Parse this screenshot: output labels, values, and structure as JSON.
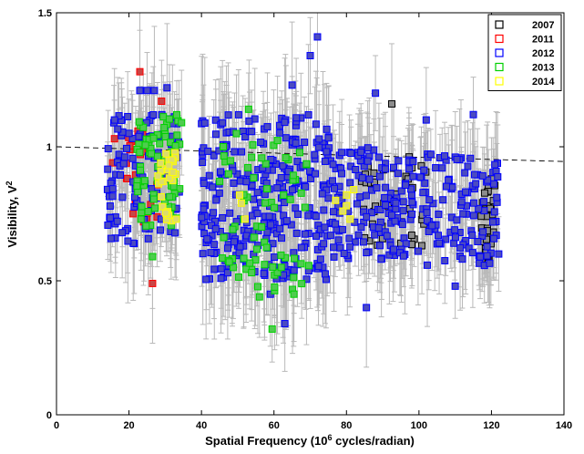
{
  "chart_data": {
    "type": "scatter",
    "xlabel_main": "Spatial Frequency (10",
    "xlabel_sup": "6",
    "xlabel_tail": " cycles/radian)",
    "ylabel_main": "Visibility, V",
    "ylabel_sup": "2",
    "xlim": [
      0,
      140
    ],
    "ylim": [
      0,
      1.5
    ],
    "xticks": [
      0,
      20,
      40,
      60,
      80,
      100,
      120,
      140
    ],
    "yticks": [
      0,
      0.5,
      1,
      1.5
    ],
    "ytick_labels": [
      "0",
      "0.5",
      "1",
      "1.5"
    ],
    "legend_position": "top-right",
    "grid": false,
    "reference_line": {
      "x": [
        0,
        140
      ],
      "y": [
        1.0,
        0.945
      ],
      "style": "dashed"
    },
    "series": [
      {
        "name": "2007",
        "edge_color": "#000000",
        "fill_color": "#8c8c8c",
        "cluster": [
          [
            84,
            102,
            0.62,
            0.98,
            40,
            0.15
          ],
          [
            117,
            121,
            0.58,
            0.87,
            38,
            0.12
          ]
        ],
        "points": [
          [
            92.5,
            1.16
          ],
          [
            93,
            0.92
          ],
          [
            97,
            0.88
          ],
          [
            98,
            0.67
          ],
          [
            95,
            0.64
          ],
          [
            85,
            0.66
          ],
          [
            120,
            0.88
          ],
          [
            119,
            0.59
          ]
        ]
      },
      {
        "name": "2011",
        "edge_color": "#ff0000",
        "fill_color": "#c84646",
        "cluster": [
          [
            19,
            28,
            0.72,
            1.06,
            24,
            0.13
          ]
        ],
        "points": [
          [
            15.5,
            0.94
          ],
          [
            16,
            1.03
          ],
          [
            23,
            1.28
          ],
          [
            26.5,
            0.49
          ],
          [
            29,
            1.17
          ],
          [
            24,
            0.72
          ],
          [
            22,
            0.8
          ]
        ]
      },
      {
        "name": "2012",
        "edge_color": "#0000ff",
        "fill_color": "#4b4bc0",
        "cluster": [
          [
            14,
            34,
            0.62,
            1.12,
            110,
            0.16
          ],
          [
            40,
            76,
            0.5,
            1.12,
            300,
            0.18
          ],
          [
            76,
            100,
            0.58,
            1.0,
            140,
            0.15
          ],
          [
            100,
            122,
            0.55,
            0.98,
            110,
            0.16
          ]
        ],
        "points": [
          [
            72,
            1.41
          ],
          [
            70,
            1.34
          ],
          [
            65,
            1.23
          ],
          [
            85.5,
            0.4
          ],
          [
            110,
            0.48
          ],
          [
            25,
            1.21
          ],
          [
            23,
            1.21
          ],
          [
            27,
            1.21
          ],
          [
            30.5,
            1.22
          ],
          [
            16,
            1.1
          ],
          [
            115,
            1.12
          ],
          [
            102,
            1.1
          ],
          [
            88,
            1.2
          ],
          [
            63,
            0.34
          ],
          [
            59,
            0.45
          ],
          [
            122,
            0.6
          ],
          [
            84,
            0.98
          ],
          [
            20,
            1.05
          ]
        ]
      },
      {
        "name": "2013",
        "edge_color": "#00d000",
        "fill_color": "#4fcc4f",
        "cluster": [
          [
            22,
            34,
            0.7,
            1.12,
            70,
            0.14
          ],
          [
            45,
            70,
            0.45,
            1.05,
            70,
            0.18
          ]
        ],
        "points": [
          [
            34.5,
            1.09
          ],
          [
            26.5,
            0.59
          ],
          [
            56,
            0.44
          ],
          [
            59.5,
            0.32
          ],
          [
            65.5,
            0.45
          ],
          [
            62,
            0.55
          ],
          [
            46,
            1.0
          ],
          [
            53,
            1.14
          ]
        ]
      },
      {
        "name": "2014",
        "edge_color": "#ffff00",
        "fill_color": "#dddd6a",
        "cluster": [
          [
            27,
            33,
            0.72,
            0.98,
            22,
            0.1
          ]
        ],
        "points": [
          [
            50.5,
            0.82
          ],
          [
            51,
            0.79
          ],
          [
            52,
            0.73
          ],
          [
            77,
            0.8
          ],
          [
            80,
            0.82
          ],
          [
            81,
            0.73
          ],
          [
            80,
            0.78
          ],
          [
            79,
            0.76
          ],
          [
            82,
            0.84
          ],
          [
            33,
            0.73
          ],
          [
            31,
            0.93
          ],
          [
            29,
            0.87
          ],
          [
            28,
            0.89
          ]
        ]
      }
    ]
  }
}
